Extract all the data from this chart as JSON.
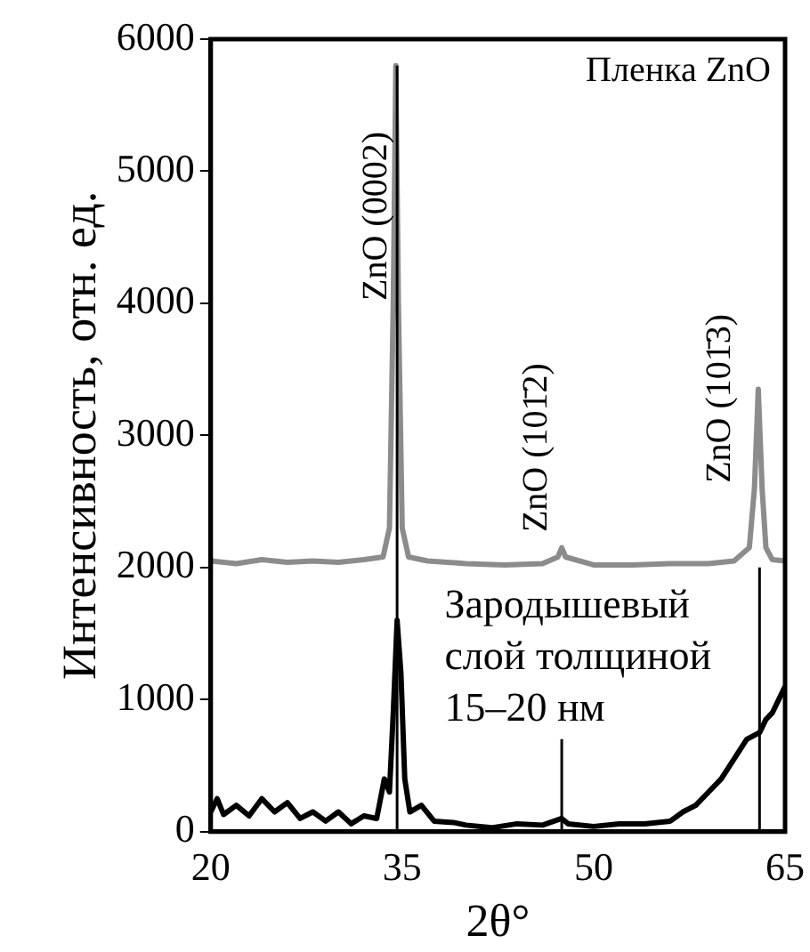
{
  "chart_data": {
    "type": "line",
    "xlabel": "2θ°",
    "ylabel": "Интенсивность, отн. ед.",
    "xlim": [
      20,
      65
    ],
    "xticks": [
      20,
      35,
      50,
      65
    ],
    "ylim": [
      0,
      6000
    ],
    "yticks": [
      0,
      1000,
      2000,
      3000,
      4000,
      5000,
      6000
    ],
    "legend": false,
    "marker": "none",
    "line_style": "solid",
    "series": [
      {
        "color": "#8c8c8c",
        "x": [
          20,
          22,
          24,
          26,
          28,
          30,
          32,
          33.5,
          34.0,
          34.3,
          34.5,
          34.7,
          35.0,
          35.5,
          37,
          40,
          43,
          46,
          47.2,
          47.5,
          47.8,
          50,
          53,
          56,
          59,
          61,
          62.2,
          62.6,
          62.9,
          63.2,
          63.5,
          64,
          65
        ],
        "values": [
          2050,
          2030,
          2060,
          2040,
          2050,
          2040,
          2060,
          2080,
          2300,
          4000,
          5800,
          4000,
          2300,
          2080,
          2050,
          2030,
          2020,
          2030,
          2080,
          2150,
          2080,
          2020,
          2020,
          2030,
          2030,
          2050,
          2150,
          2600,
          3350,
          2600,
          2150,
          2060,
          2050
        ]
      },
      {
        "color": "#000000",
        "x": [
          20,
          20.5,
          21,
          22,
          23,
          24,
          25,
          26,
          27,
          28,
          29,
          30,
          31,
          32,
          33,
          33.6,
          34,
          34.3,
          34.6,
          34.9,
          35.2,
          35.6,
          36.5,
          37.5,
          39,
          40,
          42,
          44,
          46,
          47.5,
          48,
          50,
          52,
          54,
          56,
          57,
          58,
          59,
          60,
          61,
          62,
          63,
          63.5,
          64,
          64.5,
          65
        ],
        "values": [
          150,
          250,
          130,
          200,
          120,
          250,
          150,
          220,
          100,
          150,
          80,
          150,
          60,
          120,
          100,
          400,
          300,
          900,
          1600,
          1200,
          400,
          150,
          200,
          80,
          70,
          50,
          30,
          60,
          50,
          100,
          60,
          40,
          60,
          60,
          80,
          150,
          200,
          300,
          400,
          550,
          700,
          750,
          850,
          900,
          1000,
          1100
        ]
      },
      {
        "color": "#000000",
        "x": [
          34.6,
          34.6
        ],
        "values": [
          0,
          5800
        ]
      },
      {
        "color": "#000000",
        "x": [
          47.5,
          47.5
        ],
        "values": [
          0,
          700
        ]
      },
      {
        "color": "#000000",
        "x": [
          63,
          63
        ],
        "values": [
          0,
          2000
        ]
      }
    ],
    "annotations": [
      "ZnO (0002)",
      "ZnO (101̄2)",
      "ZnO (101̄3)",
      "Пленка ZnO",
      "Зародышевый\nслой толщиной\n15–20 нм"
    ]
  }
}
